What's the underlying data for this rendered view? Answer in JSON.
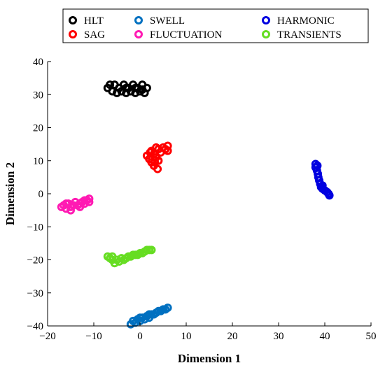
{
  "chart_data": {
    "type": "scatter",
    "title": "",
    "xlabel": "Dimension 1",
    "ylabel": "Dimension 2",
    "xlim": [
      -20,
      50
    ],
    "ylim": [
      -40,
      40
    ],
    "xticks": [
      -20,
      -10,
      0,
      10,
      20,
      30,
      40,
      50
    ],
    "yticks": [
      -40,
      -30,
      -20,
      -10,
      0,
      10,
      20,
      30,
      40
    ],
    "xtick_labels": [
      "−20",
      "−10",
      "0",
      "10",
      "20",
      "30",
      "40",
      "50"
    ],
    "ytick_labels": [
      "−40",
      "−30",
      "−20",
      "−10",
      "0",
      "10",
      "20",
      "30",
      "40"
    ],
    "grid": false,
    "legend_placement": "top-outside",
    "series": [
      {
        "name": "HLT",
        "color": "#000000",
        "points": [
          [
            -7,
            32
          ],
          [
            -6,
            31
          ],
          [
            -5.5,
            33
          ],
          [
            -5,
            30.5
          ],
          [
            -4.5,
            32
          ],
          [
            -4,
            31
          ],
          [
            -3.5,
            33
          ],
          [
            -3,
            30.5
          ],
          [
            -2.5,
            32
          ],
          [
            -2,
            31
          ],
          [
            -1.5,
            33
          ],
          [
            -1,
            30.5
          ],
          [
            -0.5,
            32
          ],
          [
            0,
            31
          ],
          [
            0.5,
            33
          ],
          [
            1,
            30.5
          ],
          [
            1.5,
            32
          ],
          [
            -6.5,
            33
          ],
          [
            -3,
            32
          ],
          [
            -1,
            32
          ],
          [
            0.5,
            31.5
          ]
        ]
      },
      {
        "name": "SAG",
        "color": "#ff0000",
        "points": [
          [
            1.5,
            11.5
          ],
          [
            2,
            10.5
          ],
          [
            2.5,
            13
          ],
          [
            2.5,
            9.5
          ],
          [
            3,
            12
          ],
          [
            3,
            8.5
          ],
          [
            3.5,
            11
          ],
          [
            3.5,
            14
          ],
          [
            3.8,
            7.5
          ],
          [
            4,
            10
          ],
          [
            4,
            13.5
          ],
          [
            4.5,
            12.5
          ],
          [
            5,
            14
          ],
          [
            5.5,
            13.5
          ],
          [
            6,
            14.5
          ],
          [
            6,
            13
          ],
          [
            2.2,
            12.5
          ],
          [
            3.2,
            9.5
          ]
        ]
      },
      {
        "name": "SWELL",
        "color": "#0070c0",
        "points": [
          [
            -2,
            -39.5
          ],
          [
            -1.5,
            -38.5
          ],
          [
            -1,
            -39
          ],
          [
            -0.5,
            -38
          ],
          [
            0,
            -38.5
          ],
          [
            0.5,
            -37.5
          ],
          [
            1,
            -38
          ],
          [
            1.5,
            -37
          ],
          [
            2,
            -37.5
          ],
          [
            2.5,
            -36.5
          ],
          [
            3,
            -36.5
          ],
          [
            3.5,
            -36
          ],
          [
            4,
            -35.5
          ],
          [
            4.5,
            -35.5
          ],
          [
            5,
            -35
          ],
          [
            5.5,
            -35
          ],
          [
            6,
            -34.5
          ],
          [
            0,
            -37.5
          ],
          [
            2,
            -36.5
          ]
        ]
      },
      {
        "name": "FLUCTUATION",
        "color": "#ff1ab3",
        "points": [
          [
            -17,
            -4
          ],
          [
            -16.5,
            -3.5
          ],
          [
            -16,
            -4.5
          ],
          [
            -15.5,
            -3
          ],
          [
            -15,
            -4
          ],
          [
            -14.5,
            -3.5
          ],
          [
            -14,
            -2.5
          ],
          [
            -13.5,
            -3.5
          ],
          [
            -13,
            -3
          ],
          [
            -12.5,
            -2.5
          ],
          [
            -12,
            -3
          ],
          [
            -11.5,
            -2
          ],
          [
            -11,
            -2.5
          ],
          [
            -11,
            -1.5
          ],
          [
            -15,
            -5
          ],
          [
            -13,
            -4
          ],
          [
            -16,
            -3
          ],
          [
            -12,
            -2
          ]
        ]
      },
      {
        "name": "HARMONIC",
        "color": "#0000e0",
        "points": [
          [
            38,
            9
          ],
          [
            38,
            8
          ],
          [
            38.3,
            7
          ],
          [
            38.5,
            6
          ],
          [
            38.6,
            5
          ],
          [
            38.8,
            4
          ],
          [
            39,
            3
          ],
          [
            39.2,
            2
          ],
          [
            39.5,
            1.5
          ],
          [
            40,
            1
          ],
          [
            40.5,
            0.5
          ],
          [
            40.8,
            0
          ],
          [
            41,
            -0.5
          ],
          [
            38.4,
            8.5
          ],
          [
            39.5,
            2.5
          ]
        ]
      },
      {
        "name": "TRANSIENTS",
        "color": "#66dd22",
        "points": [
          [
            -7,
            -19
          ],
          [
            -6.5,
            -19.5
          ],
          [
            -6,
            -20
          ],
          [
            -6,
            -19
          ],
          [
            -5.5,
            -21
          ],
          [
            -5,
            -20
          ],
          [
            -4.5,
            -20.5
          ],
          [
            -4,
            -19.5
          ],
          [
            -3.5,
            -20
          ],
          [
            -3,
            -19.5
          ],
          [
            -2.5,
            -19
          ],
          [
            -2,
            -19
          ],
          [
            -1.5,
            -18.5
          ],
          [
            -1,
            -18.5
          ],
          [
            -0.5,
            -18.5
          ],
          [
            0,
            -18
          ],
          [
            0.5,
            -18
          ],
          [
            1,
            -17.5
          ],
          [
            1.5,
            -17
          ],
          [
            2,
            -17
          ],
          [
            2.5,
            -17
          ]
        ]
      }
    ]
  }
}
